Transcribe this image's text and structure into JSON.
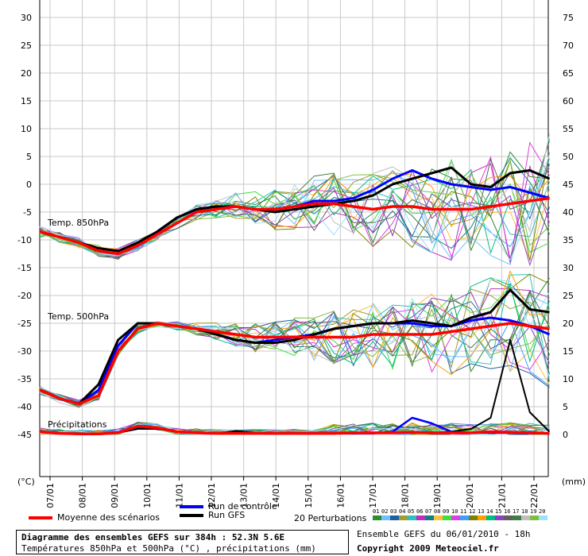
{
  "chart_data": {
    "type": "line",
    "title": "Diagramme des ensembles GEFS sur 384h : 52.3N 5.6E",
    "subtitle": "Températures 850hPa et 500hPa (°C) , précipitations (mm)",
    "x_tick_labels": [
      "07/01",
      "08/01",
      "09/01",
      "10/01",
      "11/01",
      "12/01",
      "13/01",
      "14/01",
      "15/01",
      "16/01",
      "17/01",
      "18/01",
      "19/01",
      "20/01",
      "21/01",
      "22/01"
    ],
    "x_range_days": [
      0,
      15.8
    ],
    "left_axis": {
      "unit": "(°C)",
      "ticks": [
        30,
        25,
        20,
        15,
        10,
        5,
        0,
        -5,
        -10,
        -15,
        -20,
        -25,
        -30,
        -35,
        -40,
        -45
      ],
      "ylim": [
        -45,
        30
      ]
    },
    "right_axis": {
      "unit": "(mm)",
      "ticks": [
        75,
        70,
        65,
        60,
        55,
        50,
        45,
        40,
        35,
        30,
        25,
        20,
        15,
        10,
        5,
        0
      ],
      "ylim": [
        0,
        75
      ]
    },
    "grid": true,
    "panel_labels": [
      "Temp. 850hPa",
      "Temp. 500hPa",
      "Précipitations"
    ],
    "series": [
      {
        "name": "Moyenne des scénarios",
        "color": "#ff0000",
        "t850": [
          -8.5,
          -9.5,
          -10.5,
          -12,
          -12.5,
          -11,
          -9,
          -7,
          -5,
          -4.5,
          -4,
          -4.5,
          -4.5,
          -4,
          -3.5,
          -3.5,
          -4,
          -4.5,
          -4,
          -4,
          -4.5,
          -4.5,
          -4.5,
          -4,
          -3.5,
          -3,
          -2.5
        ],
        "t500": [
          -37,
          -38.5,
          -39.5,
          -38,
          -30,
          -26,
          -25,
          -25.5,
          -26,
          -26.5,
          -27,
          -27.5,
          -27.5,
          -27.5,
          -27.5,
          -27.5,
          -27.5,
          -27,
          -27,
          -27,
          -27,
          -26.5,
          -26,
          -25.5,
          -25,
          -25.5,
          -26
        ],
        "precip": [
          0.5,
          0.2,
          0.1,
          0.1,
          0.3,
          1.5,
          1.2,
          0.5,
          0.3,
          0.2,
          0.2,
          0.2,
          0.2,
          0.2,
          0.2,
          0.2,
          0.3,
          0.3,
          0.3,
          0.4,
          0.3,
          0.3,
          0.3,
          0.5,
          0.4,
          0.3,
          0.2
        ]
      },
      {
        "name": "Run de contrôle",
        "color": "#0000ff",
        "t850": [
          -8.5,
          -9.5,
          -10.5,
          -12,
          -12.5,
          -11,
          -8.5,
          -6,
          -4.5,
          -4,
          -4,
          -4.5,
          -4.5,
          -4,
          -3,
          -3,
          -2.5,
          -1,
          1,
          2.5,
          1,
          0,
          -0.5,
          -1,
          -0.5,
          -1.5,
          -2.5
        ],
        "t500": [
          -37,
          -38.5,
          -39.5,
          -37,
          -29,
          -25,
          -25,
          -25.5,
          -26,
          -27,
          -28,
          -28.5,
          -28,
          -27.5,
          -27,
          -26,
          -25.5,
          -25,
          -25,
          -25,
          -25.5,
          -25.5,
          -24.5,
          -24,
          -24.5,
          -25.5,
          -27
        ],
        "precip": [
          0.5,
          0.2,
          0.1,
          0.1,
          0.3,
          1.3,
          1.1,
          0.5,
          0.3,
          0.2,
          0.2,
          0.2,
          0.2,
          0.3,
          0.3,
          0.2,
          0.2,
          0.2,
          0.5,
          3,
          2,
          0.5,
          0.3,
          0.3,
          0.3,
          0.2,
          0.2
        ]
      },
      {
        "name": "Run GFS",
        "color": "#000000",
        "t850": [
          -8.5,
          -9.5,
          -10.5,
          -11.5,
          -12,
          -10.5,
          -8.5,
          -6,
          -4.5,
          -4,
          -4,
          -4.5,
          -5,
          -4.5,
          -4,
          -3.5,
          -3,
          -2,
          0,
          1,
          2,
          3,
          0,
          -0.5,
          2,
          2.5,
          1
        ],
        "t500": [
          -37,
          -38.5,
          -39.5,
          -36,
          -28,
          -25,
          -25,
          -25.5,
          -26,
          -27,
          -28,
          -28.5,
          -28.5,
          -28,
          -27,
          -26,
          -25.5,
          -25,
          -25,
          -24.5,
          -25,
          -25.5,
          -24,
          -23,
          -19,
          -22.5,
          -23
        ],
        "precip": [
          0.5,
          0.2,
          0.1,
          0.1,
          0.3,
          1,
          1,
          0.5,
          0.3,
          0.2,
          0.6,
          0.3,
          0.3,
          0.2,
          0.2,
          0.2,
          0.2,
          0.3,
          0.3,
          0.3,
          0.3,
          0.5,
          1,
          3,
          17,
          4,
          0.5
        ]
      }
    ],
    "perturbations": {
      "label": "20 Perturbations",
      "numbers": [
        "01",
        "02",
        "03",
        "04",
        "05",
        "06",
        "07",
        "08",
        "09",
        "10",
        "11",
        "12",
        "13",
        "14",
        "15",
        "16",
        "17",
        "18",
        "19",
        "20"
      ],
      "colors": [
        "#2f8f2f",
        "#6fc0ff",
        "#1f5f9f",
        "#9f9f2f",
        "#2fbfbf",
        "#bf2fbf",
        "#0f7f7f",
        "#ffbf3f",
        "#3fdf3f",
        "#df3fdf",
        "#3f9fff",
        "#7f7f00",
        "#ff9f00",
        "#00bf7f",
        "#8f3fbf",
        "#5f5f5f",
        "#3f7f3f",
        "#bfbfbf",
        "#7fbf3f",
        "#9fdfff"
      ]
    }
  },
  "legend": {
    "mean": "Moyenne des scénarios",
    "control": "Run de contrôle",
    "gfs": "Run GFS"
  },
  "footer": {
    "title": "Diagramme des ensembles GEFS sur 384h : 52.3N 5.6E",
    "subtitle": "Températures 850hPa et 500hPa (°C) , précipitations (mm)",
    "ensemble_info": "Ensemble GEFS du 06/01/2010 - 18h",
    "copyright": "Copyright 2009 Meteociel.fr"
  }
}
